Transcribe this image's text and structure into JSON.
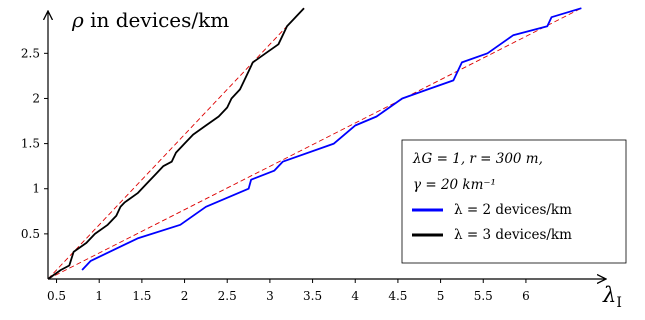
{
  "chart_data": {
    "type": "line",
    "ylabel": "ρ in devices/km",
    "xlabel": "λI",
    "xlim": [
      0.4,
      6.95
    ],
    "ylim": [
      0,
      2.98
    ],
    "x_ticks": [
      0.5,
      1,
      1.5,
      2,
      2.5,
      3,
      3.5,
      4,
      4.5,
      5,
      5.5,
      6
    ],
    "y_ticks": [
      0.5,
      1,
      1.5,
      2,
      2.5
    ],
    "legend": {
      "position": "right",
      "lines": [
        "λG = 1, r = 300 m,",
        "γ = 20 km⁻¹"
      ],
      "entries": [
        {
          "label": "λ = 2 devices/km",
          "color": "#0000ff"
        },
        {
          "label": "λ = 3 devices/km",
          "color": "#000000"
        }
      ]
    },
    "series": [
      {
        "name": "λ = 2 devices/km",
        "color": "#0000ff",
        "style": "solid",
        "points": [
          [
            0.8,
            0.1
          ],
          [
            0.9,
            0.2
          ],
          [
            1.45,
            0.45
          ],
          [
            1.95,
            0.6
          ],
          [
            2.25,
            0.8
          ],
          [
            2.75,
            1.0
          ],
          [
            2.78,
            1.1
          ],
          [
            3.05,
            1.2
          ],
          [
            3.15,
            1.3
          ],
          [
            3.75,
            1.5
          ],
          [
            4.0,
            1.7
          ],
          [
            4.25,
            1.8
          ],
          [
            4.55,
            2.0
          ],
          [
            4.85,
            2.1
          ],
          [
            5.15,
            2.2
          ],
          [
            5.25,
            2.4
          ],
          [
            5.55,
            2.5
          ],
          [
            5.85,
            2.7
          ],
          [
            6.25,
            2.8
          ],
          [
            6.3,
            2.9
          ],
          [
            6.65,
            3.0
          ]
        ]
      },
      {
        "name": "λ = 3 devices/km",
        "color": "#000000",
        "style": "solid",
        "points": [
          [
            0.4,
            0.0
          ],
          [
            0.55,
            0.1
          ],
          [
            0.65,
            0.15
          ],
          [
            0.7,
            0.3
          ],
          [
            0.85,
            0.4
          ],
          [
            0.95,
            0.5
          ],
          [
            1.1,
            0.6
          ],
          [
            1.2,
            0.7
          ],
          [
            1.25,
            0.8
          ],
          [
            1.3,
            0.85
          ],
          [
            1.45,
            0.95
          ],
          [
            1.55,
            1.05
          ],
          [
            1.65,
            1.15
          ],
          [
            1.75,
            1.25
          ],
          [
            1.85,
            1.3
          ],
          [
            1.9,
            1.4
          ],
          [
            2.0,
            1.5
          ],
          [
            2.1,
            1.6
          ],
          [
            2.25,
            1.7
          ],
          [
            2.4,
            1.8
          ],
          [
            2.5,
            1.9
          ],
          [
            2.55,
            2.0
          ],
          [
            2.65,
            2.1
          ],
          [
            2.7,
            2.2
          ],
          [
            2.75,
            2.3
          ],
          [
            2.8,
            2.4
          ],
          [
            2.95,
            2.5
          ],
          [
            3.1,
            2.6
          ],
          [
            3.15,
            2.7
          ],
          [
            3.2,
            2.8
          ],
          [
            3.3,
            2.9
          ],
          [
            3.4,
            3.0
          ]
        ]
      },
      {
        "name": "",
        "color": "#dd0000",
        "style": "dashed",
        "points": [
          [
            0.4,
            0.0
          ],
          [
            3.4,
            3.0
          ]
        ]
      },
      {
        "name": "",
        "color": "#dd0000",
        "style": "dashed",
        "points": [
          [
            0.4,
            0.0
          ],
          [
            6.65,
            3.0
          ]
        ]
      }
    ]
  }
}
